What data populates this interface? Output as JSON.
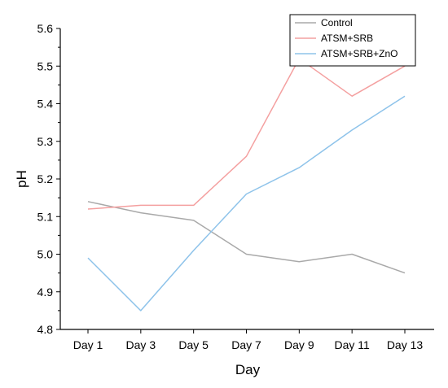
{
  "chart_data": {
    "type": "line",
    "title": "",
    "xlabel": "Day",
    "ylabel": "pH",
    "categories": [
      "Day 1",
      "Day 3",
      "Day 5",
      "Day 7",
      "Day 9",
      "Day 11",
      "Day 13"
    ],
    "ylim": [
      4.8,
      5.6
    ],
    "yticks": [
      "4.8",
      "4.9",
      "5.0",
      "5.1",
      "5.2",
      "5.3",
      "5.4",
      "5.5",
      "5.6"
    ],
    "grid": false,
    "legend_position": "top-right",
    "series": [
      {
        "name": "Control",
        "color": "#a9a9a9",
        "values": [
          5.14,
          5.11,
          5.09,
          5.0,
          4.98,
          5.0,
          4.95
        ]
      },
      {
        "name": "ATSM+SRB",
        "color": "#f4a0a0",
        "values": [
          5.12,
          5.13,
          5.13,
          5.26,
          5.52,
          5.42,
          5.5
        ]
      },
      {
        "name": "ATSM+SRB+ZnO",
        "color": "#8ec3ea",
        "values": [
          4.99,
          4.85,
          5.01,
          5.16,
          5.23,
          5.33,
          5.42
        ]
      }
    ]
  }
}
